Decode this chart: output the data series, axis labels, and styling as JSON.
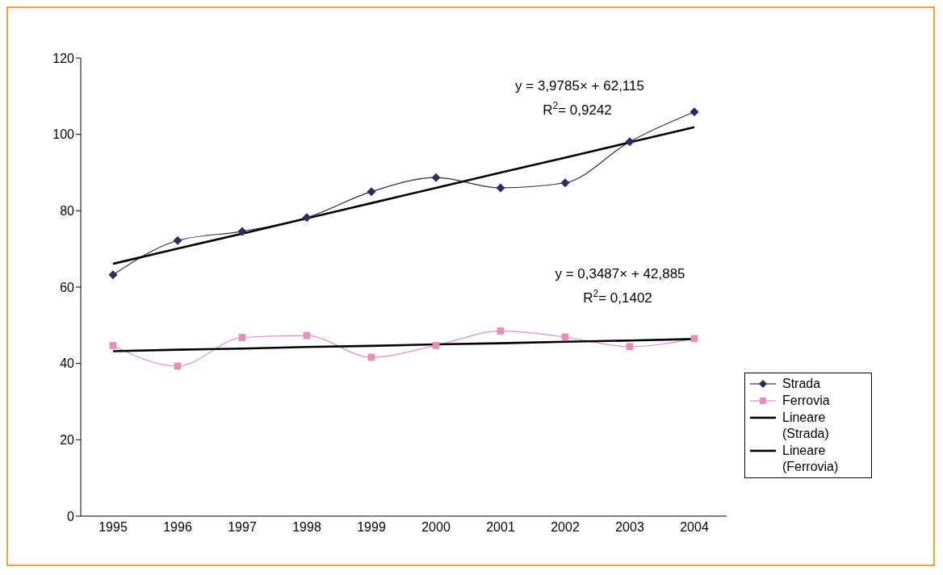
{
  "chart_data": {
    "type": "line",
    "categories": [
      "1995",
      "1996",
      "1997",
      "1998",
      "1999",
      "2000",
      "2001",
      "2002",
      "2003",
      "2004"
    ],
    "series": [
      {
        "name": "Strada",
        "color": "#33295f",
        "marker": "diamond",
        "values": [
          63.2,
          72.2,
          74.6,
          78.2,
          85.0,
          88.7,
          86.0,
          87.3,
          98.1,
          105.9
        ]
      },
      {
        "name": "Ferrovia",
        "color": "#e58fbb",
        "marker": "square",
        "values": [
          44.7,
          39.3,
          46.8,
          47.3,
          41.6,
          44.7,
          48.5,
          46.9,
          44.4,
          46.5
        ]
      },
      {
        "name": "Lineare (Strada)",
        "color": "#000000",
        "marker": "none",
        "values": [
          66.1,
          70.1,
          74.0,
          78.0,
          82.0,
          86.0,
          90.0,
          93.9,
          97.9,
          101.9
        ]
      },
      {
        "name": "Lineare (Ferrovia)",
        "color": "#000000",
        "marker": "none",
        "values": [
          43.2,
          43.6,
          43.9,
          44.3,
          44.6,
          45.0,
          45.3,
          45.7,
          46.0,
          46.4
        ]
      }
    ],
    "ylim": [
      0,
      120
    ],
    "yticks": [
      0,
      20,
      40,
      60,
      80,
      100,
      120
    ],
    "grid": false,
    "legend": "right",
    "annotations": [
      "y = 3,9785× + 62,115",
      "R$^{2}$= 0,9242",
      "y = 0,3487× + 42,885",
      "R$^{2}$= 0,1402"
    ]
  }
}
